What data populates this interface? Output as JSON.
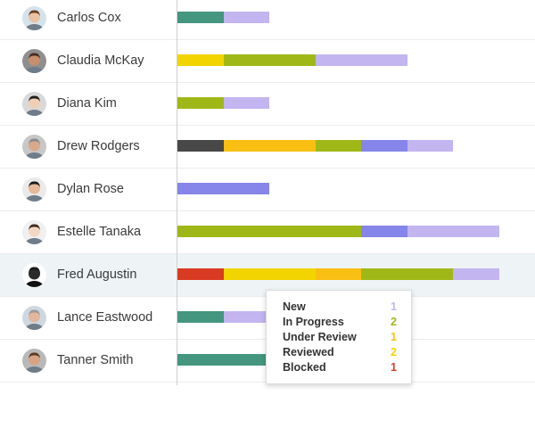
{
  "status_colors": {
    "todo": "#44967f",
    "new": "#c3b5f0",
    "in_progress": "#a0b817",
    "under_review": "#f9bf13",
    "reviewed": "#f2d400",
    "blocked": "#d93a22",
    "on_hold": "#484848",
    "assigned": "#8585ea"
  },
  "rows": [
    {
      "name": "Carlos Cox",
      "avatar": "carlos-cox-avatar",
      "segments": [
        {
          "status": "todo",
          "count": 1
        },
        {
          "status": "new",
          "count": 1
        }
      ]
    },
    {
      "name": "Claudia McKay",
      "avatar": "claudia-mckay-avatar",
      "segments": [
        {
          "status": "reviewed",
          "count": 1
        },
        {
          "status": "in_progress",
          "count": 2
        },
        {
          "status": "new",
          "count": 2
        }
      ]
    },
    {
      "name": "Diana Kim",
      "avatar": "diana-kim-avatar",
      "segments": [
        {
          "status": "in_progress",
          "count": 1
        },
        {
          "status": "new",
          "count": 1
        }
      ]
    },
    {
      "name": "Drew Rodgers",
      "avatar": "drew-rodgers-avatar",
      "segments": [
        {
          "status": "on_hold",
          "count": 1
        },
        {
          "status": "under_review",
          "count": 2
        },
        {
          "status": "in_progress",
          "count": 1
        },
        {
          "status": "assigned",
          "count": 1
        },
        {
          "status": "new",
          "count": 1
        }
      ]
    },
    {
      "name": "Dylan Rose",
      "avatar": "dylan-rose-avatar",
      "segments": [
        {
          "status": "assigned",
          "count": 2
        }
      ]
    },
    {
      "name": "Estelle Tanaka",
      "avatar": "estelle-tanaka-avatar",
      "segments": [
        {
          "status": "in_progress",
          "count": 4
        },
        {
          "status": "assigned",
          "count": 1
        },
        {
          "status": "new",
          "count": 2
        }
      ]
    },
    {
      "name": "Fred Augustin",
      "avatar": "fred-augustin-avatar",
      "highlighted": true,
      "segments": [
        {
          "status": "blocked",
          "count": 1
        },
        {
          "status": "reviewed",
          "count": 2
        },
        {
          "status": "under_review",
          "count": 1
        },
        {
          "status": "in_progress",
          "count": 2
        },
        {
          "status": "new",
          "count": 1
        }
      ]
    },
    {
      "name": "Lance Eastwood",
      "avatar": "lance-eastwood-avatar",
      "segments": [
        {
          "status": "todo",
          "count": 1
        },
        {
          "status": "new",
          "count": 1
        }
      ]
    },
    {
      "name": "Tanner Smith",
      "avatar": "tanner-smith-avatar",
      "segments": [
        {
          "status": "todo",
          "count": 2
        }
      ]
    }
  ],
  "tooltip": {
    "items": [
      {
        "label": "New",
        "count": "1",
        "status": "new"
      },
      {
        "label": "In Progress",
        "count": "2",
        "status": "in_progress"
      },
      {
        "label": "Under Review",
        "count": "1",
        "status": "under_review"
      },
      {
        "label": "Reviewed",
        "count": "2",
        "status": "reviewed"
      },
      {
        "label": "Blocked",
        "count": "1",
        "status": "blocked"
      }
    ]
  }
}
